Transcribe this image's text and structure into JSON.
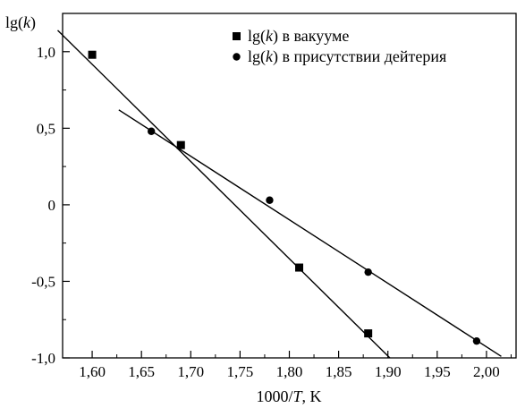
{
  "chart_data": {
    "type": "scatter",
    "ylabel_prefix": "lg(",
    "ylabel_var": "k",
    "ylabel_suffix": ")",
    "xlabel_prefix": "1000/",
    "xlabel_var": "T",
    "xlabel_suffix": ", K",
    "xlim": [
      1.57,
      2.03
    ],
    "ylim": [
      -1.0,
      1.25
    ],
    "x_ticks": [
      1.6,
      1.65,
      1.7,
      1.75,
      1.8,
      1.85,
      1.9,
      1.95,
      2.0
    ],
    "x_tick_labels": [
      "1,60",
      "1,65",
      "1,70",
      "1,75",
      "1,80",
      "1,85",
      "1,90",
      "1,95",
      "2,00"
    ],
    "y_ticks": [
      -1.0,
      -0.5,
      0,
      0.5,
      1.0
    ],
    "y_tick_labels": [
      "-1,0",
      "-0,5",
      "0",
      "0,5",
      "1,0"
    ],
    "grid": false,
    "legend_position": "top-right",
    "series": [
      {
        "name_prefix": "lg(",
        "name_var": "k",
        "name_suffix": ") в вакууме",
        "marker": "square",
        "color": "#000000",
        "points": [
          {
            "x": 1.6,
            "y": 0.98
          },
          {
            "x": 1.69,
            "y": 0.39
          },
          {
            "x": 1.81,
            "y": -0.41
          },
          {
            "x": 1.88,
            "y": -0.84
          }
        ],
        "fit_line": {
          "x_start": 1.565,
          "y_start": 1.14,
          "x_end": 1.902,
          "y_end": -1.0
        }
      },
      {
        "name_prefix": "lg(",
        "name_var": "k",
        "name_suffix": ") в присутствии дейтерия",
        "marker": "circle",
        "color": "#000000",
        "points": [
          {
            "x": 1.66,
            "y": 0.48
          },
          {
            "x": 1.78,
            "y": 0.03
          },
          {
            "x": 1.88,
            "y": -0.44
          },
          {
            "x": 1.99,
            "y": -0.89
          }
        ],
        "fit_line": {
          "x_start": 1.627,
          "y_start": 0.62,
          "x_end": 2.015,
          "y_end": -0.99
        }
      }
    ]
  }
}
